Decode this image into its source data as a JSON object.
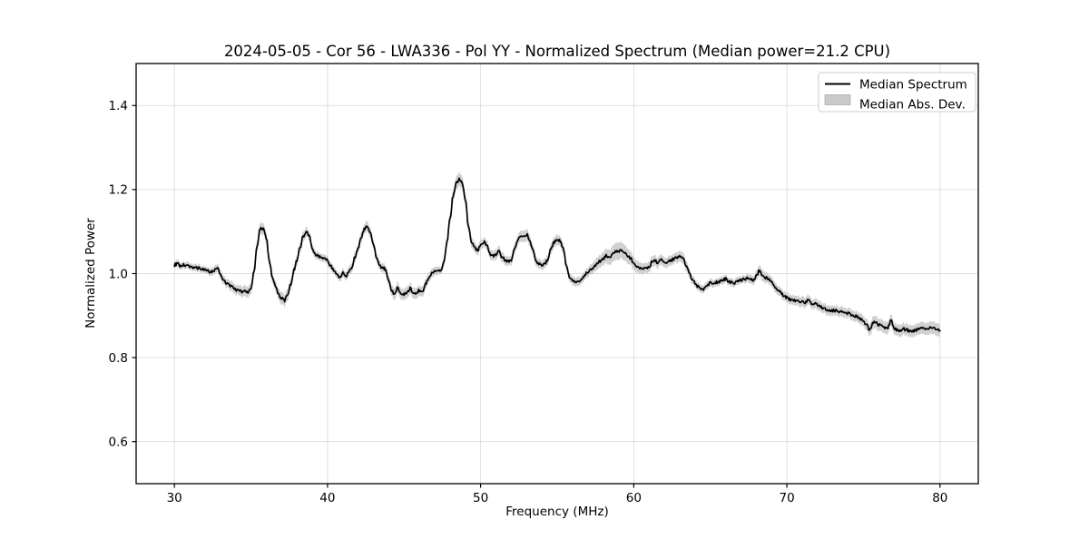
{
  "chart_data": {
    "type": "line",
    "title": "2024-05-05 - Cor 56 - LWA336 - Pol YY - Normalized Spectrum (Median power=21.2 CPU)",
    "xlabel": "Frequency (MHz)",
    "ylabel": "Normalized Power",
    "xlim": [
      27.5,
      82.5
    ],
    "ylim": [
      0.5,
      1.5
    ],
    "x_ticks": [
      30,
      40,
      50,
      60,
      70,
      80
    ],
    "y_ticks": [
      0.6,
      0.8,
      1.0,
      1.2,
      1.4
    ],
    "grid": true,
    "legend": {
      "position": "upper right",
      "entries": [
        {
          "label": "Median Spectrum",
          "type": "line",
          "color": "#000000"
        },
        {
          "label": "Median Abs. Dev.",
          "type": "patch",
          "color": "#c4c4c4"
        }
      ]
    },
    "series": [
      {
        "name": "Median Spectrum",
        "x_start": 30.0,
        "x_step": 0.2,
        "values": [
          1.021,
          1.023,
          1.018,
          1.021,
          1.017,
          1.018,
          1.015,
          1.013,
          1.014,
          1.011,
          1.008,
          1.006,
          1.004,
          1.008,
          1.014,
          0.998,
          0.986,
          0.978,
          0.972,
          0.967,
          0.962,
          0.959,
          0.957,
          0.959,
          0.956,
          0.963,
          1.005,
          1.065,
          1.108,
          1.106,
          1.085,
          1.03,
          0.992,
          0.968,
          0.95,
          0.941,
          0.936,
          0.952,
          0.975,
          1.008,
          1.032,
          1.062,
          1.088,
          1.1,
          1.09,
          1.062,
          1.046,
          1.042,
          1.039,
          1.036,
          1.031,
          1.02,
          1.008,
          0.996,
          0.991,
          1.002,
          0.994,
          1.007,
          1.016,
          1.04,
          1.062,
          1.086,
          1.106,
          1.113,
          1.096,
          1.068,
          1.038,
          1.018,
          1.014,
          1.01,
          0.98,
          0.958,
          0.951,
          0.967,
          0.952,
          0.951,
          0.954,
          0.965,
          0.951,
          0.954,
          0.96,
          0.957,
          0.974,
          0.99,
          1.0,
          1.006,
          1.01,
          1.006,
          1.028,
          1.075,
          1.13,
          1.185,
          1.215,
          1.224,
          1.216,
          1.175,
          1.115,
          1.075,
          1.062,
          1.056,
          1.066,
          1.075,
          1.068,
          1.047,
          1.041,
          1.046,
          1.052,
          1.04,
          1.032,
          1.028,
          1.032,
          1.056,
          1.08,
          1.092,
          1.086,
          1.094,
          1.08,
          1.058,
          1.03,
          1.023,
          1.019,
          1.022,
          1.035,
          1.06,
          1.075,
          1.082,
          1.078,
          1.06,
          1.02,
          0.99,
          0.983,
          0.979,
          0.983,
          0.988,
          0.996,
          1.003,
          1.01,
          1.016,
          1.023,
          1.03,
          1.035,
          1.042,
          1.036,
          1.046,
          1.051,
          1.054,
          1.053,
          1.052,
          1.042,
          1.036,
          1.024,
          1.018,
          1.013,
          1.012,
          1.013,
          1.017,
          1.028,
          1.03,
          1.026,
          1.032,
          1.024,
          1.028,
          1.032,
          1.034,
          1.037,
          1.042,
          1.038,
          1.02,
          1.004,
          0.988,
          0.977,
          0.969,
          0.965,
          0.963,
          0.971,
          0.979,
          0.977,
          0.979,
          0.981,
          0.984,
          0.987,
          0.981,
          0.979,
          0.978,
          0.981,
          0.984,
          0.987,
          0.989,
          0.987,
          0.982,
          0.995,
          1.007,
          0.998,
          0.99,
          0.986,
          0.982,
          0.97,
          0.961,
          0.955,
          0.948,
          0.942,
          0.939,
          0.937,
          0.935,
          0.934,
          0.933,
          0.931,
          0.936,
          0.929,
          0.928,
          0.925,
          0.921,
          0.918,
          0.915,
          0.913,
          0.912,
          0.912,
          0.91,
          0.908,
          0.907,
          0.906,
          0.902,
          0.9,
          0.897,
          0.892,
          0.888,
          0.878,
          0.866,
          0.881,
          0.886,
          0.878,
          0.874,
          0.87,
          0.872,
          0.889,
          0.868,
          0.866,
          0.864,
          0.868,
          0.866,
          0.864,
          0.863,
          0.866,
          0.867,
          0.872,
          0.87,
          0.868,
          0.872,
          0.87,
          0.867,
          0.866
        ]
      },
      {
        "name": "Median Abs. Dev.",
        "band_halfwidth_knots": [
          [
            30,
            0.008
          ],
          [
            32,
            0.008
          ],
          [
            33.5,
            0.011
          ],
          [
            35.6,
            0.014
          ],
          [
            36.5,
            0.012
          ],
          [
            37.1,
            0.015
          ],
          [
            38,
            0.011
          ],
          [
            38.6,
            0.012
          ],
          [
            39.5,
            0.009
          ],
          [
            40.5,
            0.009
          ],
          [
            42,
            0.011
          ],
          [
            42.6,
            0.013
          ],
          [
            43.5,
            0.01
          ],
          [
            44.5,
            0.014
          ],
          [
            45.5,
            0.013
          ],
          [
            46.5,
            0.012
          ],
          [
            47.3,
            0.009
          ],
          [
            48.0,
            0.013
          ],
          [
            48.6,
            0.017
          ],
          [
            49.3,
            0.013
          ],
          [
            50,
            0.011
          ],
          [
            51,
            0.012
          ],
          [
            52,
            0.011
          ],
          [
            53,
            0.014
          ],
          [
            54,
            0.011
          ],
          [
            55,
            0.013
          ],
          [
            56,
            0.01
          ],
          [
            57,
            0.011
          ],
          [
            58,
            0.016
          ],
          [
            58.8,
            0.021
          ],
          [
            59.4,
            0.019
          ],
          [
            60,
            0.015
          ],
          [
            60.8,
            0.012
          ],
          [
            61.5,
            0.013
          ],
          [
            62.5,
            0.012
          ],
          [
            63.2,
            0.013
          ],
          [
            64,
            0.01
          ],
          [
            65,
            0.009
          ],
          [
            66,
            0.009
          ],
          [
            67,
            0.009
          ],
          [
            68,
            0.011
          ],
          [
            68.3,
            0.014
          ],
          [
            69,
            0.011
          ],
          [
            70,
            0.011
          ],
          [
            71,
            0.012
          ],
          [
            72,
            0.012
          ],
          [
            73,
            0.012
          ],
          [
            74,
            0.012
          ],
          [
            75,
            0.013
          ],
          [
            75.5,
            0.015
          ],
          [
            76.5,
            0.014
          ],
          [
            77.5,
            0.014
          ],
          [
            78.5,
            0.014
          ],
          [
            79.5,
            0.015
          ],
          [
            80,
            0.015
          ]
        ]
      }
    ],
    "noise_amplitude": 0.0035
  },
  "colors": {
    "background": "#ffffff",
    "line": "#000000",
    "band": "#c9c9c9",
    "grid": "#dcdcdc",
    "spine": "#000000",
    "legend_border": "#cccccc",
    "legend_patch_edge": "#adadad"
  }
}
